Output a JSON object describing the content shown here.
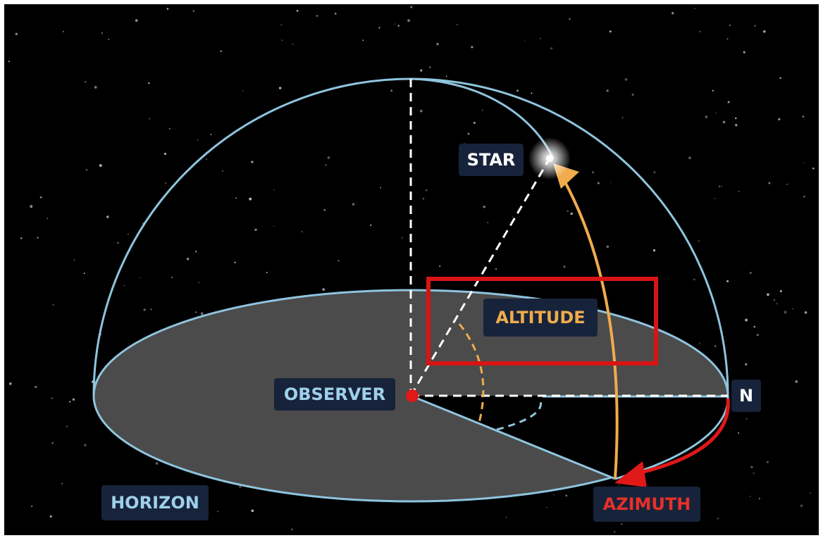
{
  "labels": {
    "star": "STAR",
    "altitude": "ALTITUDE",
    "observer": "OBSERVER",
    "north": "N",
    "horizon": "HORIZON",
    "azimuth": "AZIMUTH"
  }
}
